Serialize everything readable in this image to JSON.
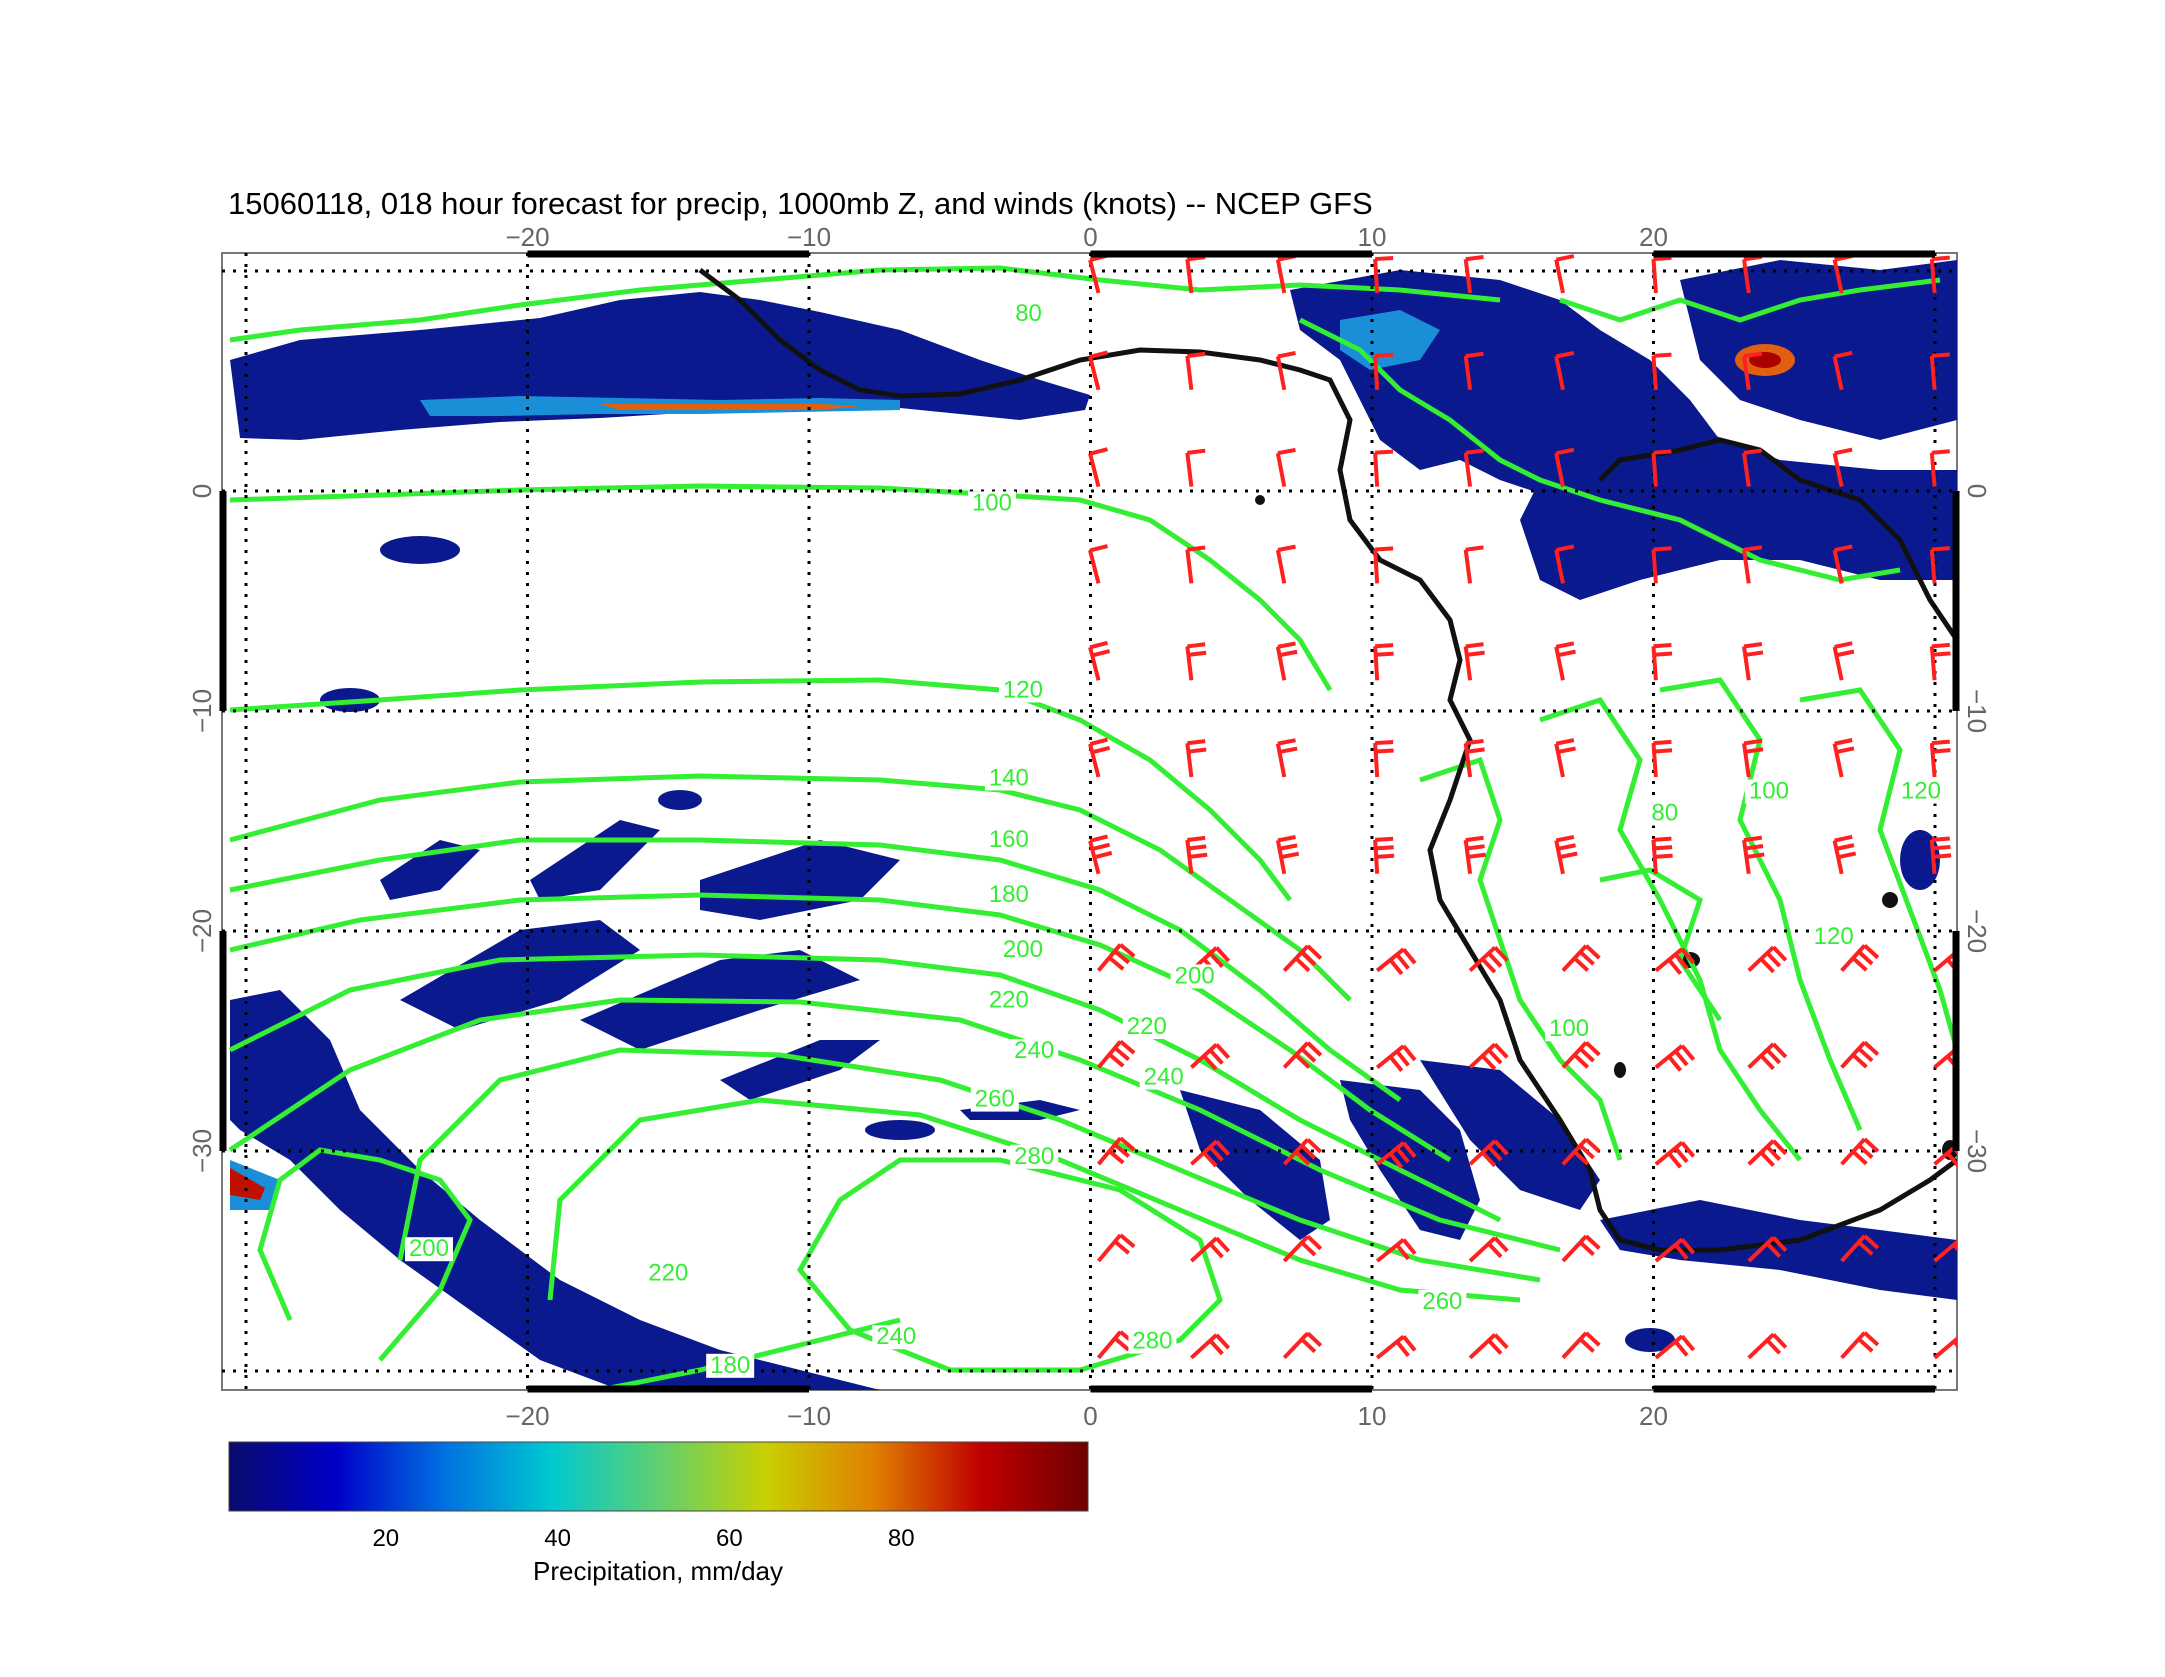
{
  "title": "15060118, 018 hour forecast for precip, 1000mb Z, and winds (knots) -- NCEP GFS",
  "map": {
    "lon_range": [
      -30,
      31
    ],
    "lat_range": [
      -40,
      11
    ],
    "lon_ticks": [
      {
        "value": -20,
        "label": "−20"
      },
      {
        "value": -10,
        "label": "−10"
      },
      {
        "value": 0,
        "label": "0"
      },
      {
        "value": 10,
        "label": "10"
      },
      {
        "value": 20,
        "label": "20"
      }
    ],
    "lat_ticks": [
      {
        "value": 0,
        "label": "0"
      },
      {
        "value": -10,
        "label": "−10"
      },
      {
        "value": -20,
        "label": "−20"
      },
      {
        "value": -30,
        "label": "−30"
      }
    ],
    "grid_lons": [
      -30,
      -20,
      -10,
      0,
      10,
      20,
      30
    ],
    "grid_lats": [
      10,
      0,
      -10,
      -20,
      -30,
      -40
    ],
    "colors": {
      "contour": "#33ee33",
      "coast": "#111111",
      "barb": "#ff2020",
      "grid": "#000000"
    },
    "contour_labels": [
      {
        "text": "100",
        "lon": -3.5,
        "lat": -0.7
      },
      {
        "text": "120",
        "lon": -2.4,
        "lat": -9.2
      },
      {
        "text": "140",
        "lon": -2.9,
        "lat": -13.2
      },
      {
        "text": "160",
        "lon": -2.9,
        "lat": -16.0
      },
      {
        "text": "180",
        "lon": -2.9,
        "lat": -18.5
      },
      {
        "text": "200",
        "lon": -2.4,
        "lat": -21.0
      },
      {
        "text": "220",
        "lon": -2.9,
        "lat": -23.3
      },
      {
        "text": "240",
        "lon": -2.0,
        "lat": -25.6
      },
      {
        "text": "260",
        "lon": -3.4,
        "lat": -27.8
      },
      {
        "text": "280",
        "lon": -2.0,
        "lat": -30.4
      },
      {
        "text": "200",
        "lon": 3.7,
        "lat": -22.2
      },
      {
        "text": "220",
        "lon": 2.0,
        "lat": -24.5
      },
      {
        "text": "240",
        "lon": 2.6,
        "lat": -26.8
      },
      {
        "text": "280",
        "lon": 2.2,
        "lat": -38.8
      },
      {
        "text": "260",
        "lon": 12.5,
        "lat": -37.0
      },
      {
        "text": "220",
        "lon": -15.0,
        "lat": -35.7
      },
      {
        "text": "240",
        "lon": -6.9,
        "lat": -38.6
      },
      {
        "text": "180",
        "lon": -12.8,
        "lat": -39.9
      },
      {
        "text": "200",
        "lon": -23.5,
        "lat": -34.6
      },
      {
        "text": "80",
        "lon": -2.2,
        "lat": 7.9
      },
      {
        "text": "80",
        "lon": 20.4,
        "lat": -14.8
      },
      {
        "text": "100",
        "lon": 24.1,
        "lat": -13.8
      },
      {
        "text": "120",
        "lon": 29.5,
        "lat": -13.8
      },
      {
        "text": "120",
        "lon": 26.4,
        "lat": -20.4
      },
      {
        "text": "100",
        "lon": 17.0,
        "lat": -24.6
      }
    ]
  },
  "colorbar": {
    "range": [
      0,
      100
    ],
    "ticks": [
      {
        "value": 20,
        "label": "20"
      },
      {
        "value": 40,
        "label": "40"
      },
      {
        "value": 60,
        "label": "60"
      },
      {
        "value": 80,
        "label": "80"
      }
    ],
    "label": "Precipitation, mm/day",
    "stops": [
      "#0a0a6e",
      "#0000c8",
      "#0070e0",
      "#00c8d0",
      "#60d070",
      "#c8d000",
      "#e08000",
      "#c00000",
      "#6e0000"
    ]
  }
}
